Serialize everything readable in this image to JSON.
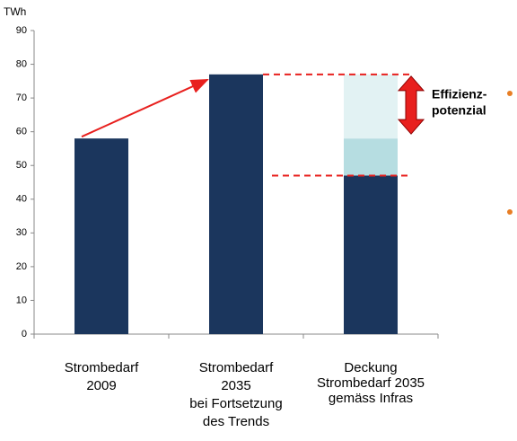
{
  "chart_data": {
    "type": "bar",
    "stacked": true,
    "y_label": "TWh",
    "categories": [
      [
        "Strombedarf",
        "2009"
      ],
      [
        "Strombedarf",
        "2035",
        "bei Fortsetzung",
        "des Trends"
      ],
      [
        "Deckung",
        "Strombedarf 2035",
        "gemäss Infras"
      ]
    ],
    "series": [
      {
        "color": "#1b365d",
        "values": [
          58,
          77,
          47
        ]
      },
      {
        "color": "#b6dde1",
        "values": [
          null,
          null,
          11
        ]
      },
      {
        "color": "#e2f2f3",
        "values": [
          null,
          null,
          19
        ]
      }
    ],
    "annotation": [
      "Effizienz-",
      "potenzial"
    ],
    "ylim": [
      0,
      90
    ],
    "yticks": [
      0,
      10,
      20,
      30,
      40,
      50,
      60,
      70,
      80,
      90
    ],
    "grid": false
  }
}
